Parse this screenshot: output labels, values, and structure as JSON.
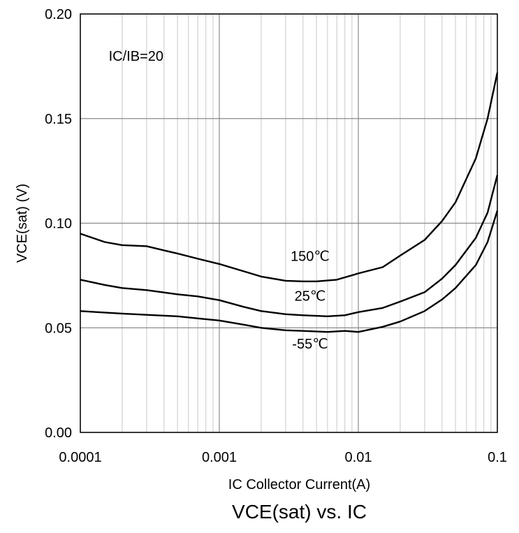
{
  "chart_data": {
    "type": "line",
    "title": "VCE(sat) vs. IC",
    "xlabel": "IC Collector Current(A)",
    "ylabel": "VCE(sat) (V)",
    "xscale": "log",
    "xlim": [
      0.0001,
      0.1
    ],
    "ylim": [
      0,
      0.2
    ],
    "xticks": [
      0.0001,
      0.001,
      0.01,
      0.1
    ],
    "xtick_labels": [
      "0.0001",
      "0.001",
      "0.01",
      "0.1"
    ],
    "yticks": [
      0,
      0.05,
      0.1,
      0.15,
      0.2
    ],
    "ytick_labels": [
      "0.00",
      "0.05",
      "0.10",
      "0.15",
      "0.20"
    ],
    "grid": true,
    "annotations": [
      {
        "text": "IC/IB=20",
        "x": 0.00016,
        "y": 0.18
      }
    ],
    "series": [
      {
        "name": "150℃",
        "color": "#000000",
        "label_at": {
          "x": 0.0045,
          "y": 0.082
        },
        "points": [
          [
            0.0001,
            0.095
          ],
          [
            0.00015,
            0.091
          ],
          [
            0.0002,
            0.0895
          ],
          [
            0.0003,
            0.089
          ],
          [
            0.0004,
            0.087
          ],
          [
            0.0005,
            0.0855
          ],
          [
            0.0007,
            0.083
          ],
          [
            0.001,
            0.0805
          ],
          [
            0.0015,
            0.077
          ],
          [
            0.002,
            0.0745
          ],
          [
            0.003,
            0.0725
          ],
          [
            0.004,
            0.0722
          ],
          [
            0.005,
            0.0722
          ],
          [
            0.007,
            0.073
          ],
          [
            0.01,
            0.076
          ],
          [
            0.015,
            0.079
          ],
          [
            0.02,
            0.0845
          ],
          [
            0.03,
            0.092
          ],
          [
            0.04,
            0.101
          ],
          [
            0.05,
            0.11
          ],
          [
            0.07,
            0.131
          ],
          [
            0.085,
            0.15
          ],
          [
            0.1,
            0.172
          ]
        ]
      },
      {
        "name": "25℃",
        "color": "#000000",
        "label_at": {
          "x": 0.0045,
          "y": 0.063
        },
        "points": [
          [
            0.0001,
            0.073
          ],
          [
            0.00015,
            0.0705
          ],
          [
            0.0002,
            0.069
          ],
          [
            0.0003,
            0.068
          ],
          [
            0.0005,
            0.066
          ],
          [
            0.0007,
            0.065
          ],
          [
            0.001,
            0.0632
          ],
          [
            0.0015,
            0.06
          ],
          [
            0.002,
            0.058
          ],
          [
            0.003,
            0.0565
          ],
          [
            0.004,
            0.056
          ],
          [
            0.006,
            0.0555
          ],
          [
            0.008,
            0.056
          ],
          [
            0.01,
            0.0575
          ],
          [
            0.015,
            0.0595
          ],
          [
            0.02,
            0.0625
          ],
          [
            0.03,
            0.067
          ],
          [
            0.04,
            0.0735
          ],
          [
            0.05,
            0.08
          ],
          [
            0.07,
            0.093
          ],
          [
            0.085,
            0.105
          ],
          [
            0.1,
            0.123
          ]
        ]
      },
      {
        "name": "-55℃",
        "color": "#000000",
        "label_at": {
          "x": 0.0045,
          "y": 0.04
        },
        "points": [
          [
            0.0001,
            0.058
          ],
          [
            0.0002,
            0.0568
          ],
          [
            0.0003,
            0.0562
          ],
          [
            0.0005,
            0.0555
          ],
          [
            0.0007,
            0.0545
          ],
          [
            0.001,
            0.0535
          ],
          [
            0.0015,
            0.0515
          ],
          [
            0.002,
            0.05
          ],
          [
            0.003,
            0.0488
          ],
          [
            0.004,
            0.0485
          ],
          [
            0.006,
            0.048
          ],
          [
            0.008,
            0.0485
          ],
          [
            0.01,
            0.048
          ],
          [
            0.015,
            0.0505
          ],
          [
            0.02,
            0.053
          ],
          [
            0.03,
            0.058
          ],
          [
            0.04,
            0.0635
          ],
          [
            0.05,
            0.069
          ],
          [
            0.07,
            0.08
          ],
          [
            0.085,
            0.091
          ],
          [
            0.1,
            0.106
          ]
        ]
      }
    ]
  }
}
